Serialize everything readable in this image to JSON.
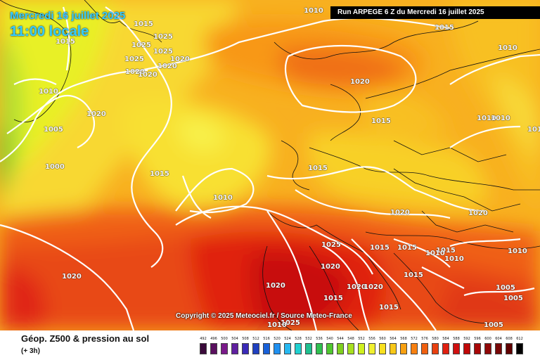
{
  "header": {
    "date": "Mercredi 16 juillet 2025",
    "local_time": "11:00 locale",
    "run": "Run ARPEGE 6 Z du Mercredi 16 juillet 2025"
  },
  "copyright": "Copyright © 2025 Meteociel.fr / Source Meteo-France",
  "footer": {
    "title": "Géop. Z500 & pression au sol",
    "subtitle": "(+ 3h)"
  },
  "isobar_labels": [
    "1010",
    "1015",
    "1015",
    "1025",
    "1015",
    "1025",
    "1025",
    "1025",
    "1020",
    "1020",
    "1020",
    "1020",
    "1020",
    "1010",
    "1010",
    "1020",
    "1005",
    "1000",
    "1015",
    "1010",
    "1020",
    "1015",
    "1015",
    "1010",
    "1010",
    "1010",
    "1020",
    "1010",
    "1025",
    "1015",
    "1015",
    "1015",
    "1015",
    "1010",
    "1010",
    "1020",
    "1015",
    "1020",
    "1020",
    "1020",
    "1020",
    "1025",
    "1010",
    "1015",
    "1005",
    "1005",
    "1005"
  ],
  "legend": {
    "ticks": [
      "492",
      "496",
      "500",
      "504",
      "508",
      "512",
      "516",
      "520",
      "524",
      "528",
      "532",
      "536",
      "540",
      "544",
      "548",
      "552",
      "556",
      "560",
      "564",
      "568",
      "572",
      "576",
      "580",
      "584",
      "588",
      "592",
      "596",
      "600",
      "604",
      "608",
      "612"
    ],
    "colors": [
      "#3a0a3a",
      "#5a105f",
      "#7a1a8a",
      "#6020a0",
      "#3a2ab8",
      "#2040c0",
      "#1860d8",
      "#2090f0",
      "#28b8f0",
      "#20d0d0",
      "#20c090",
      "#30c050",
      "#50c830",
      "#80d020",
      "#a8e020",
      "#d0f020",
      "#f0f030",
      "#f8e020",
      "#f8c818",
      "#f8a010",
      "#f88010",
      "#f06010",
      "#e84010",
      "#e02010",
      "#d01010",
      "#c00808",
      "#a80808",
      "#900808",
      "#780808",
      "#600000",
      "#000000"
    ]
  },
  "colors": {
    "accent_title": "#33ccff",
    "isobar": "#ffffff"
  }
}
